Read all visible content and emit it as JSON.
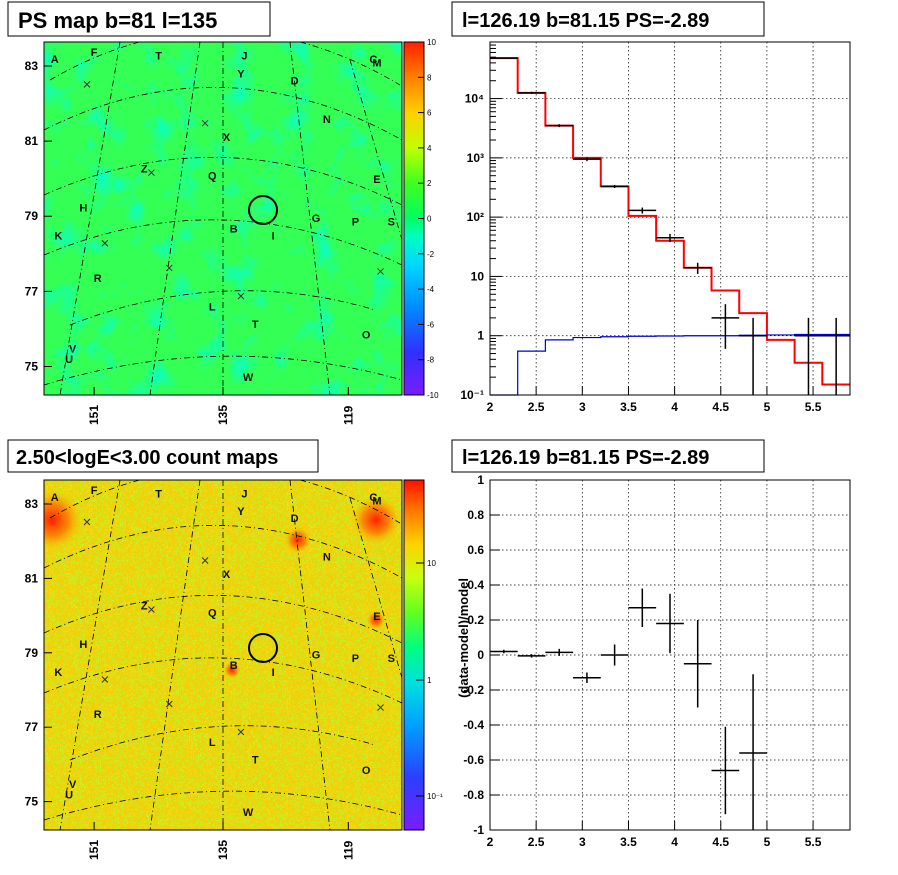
{
  "panels": {
    "ps_map": {
      "title": "PS map b=81 l=135",
      "colorbar": {
        "min": -10,
        "max": 10,
        "ticks": [
          -10,
          -8,
          -6,
          -4,
          -2,
          0,
          2,
          4,
          6,
          8,
          10
        ]
      },
      "y_ticks": [
        "83",
        "81",
        "79",
        "77",
        "75"
      ],
      "x_ticks": [
        "151",
        "135",
        "119"
      ]
    },
    "count_map": {
      "title": "2.50<logE<3.00 count maps",
      "colorbar": {
        "scale": "log",
        "ticks": [
          "10",
          "1",
          "10⁻¹"
        ]
      },
      "y_ticks": [
        "83",
        "81",
        "79",
        "77",
        "75"
      ],
      "x_ticks": [
        "151",
        "135",
        "119"
      ]
    },
    "spectrum": {
      "title": "l=126.19 b=81.15 PS=-2.89"
    },
    "residual": {
      "title": "l=126.19 b=81.15 PS=-2.89"
    }
  },
  "sources": [
    {
      "label": "A",
      "u": 0.03,
      "v": 0.06
    },
    {
      "label": "F",
      "u": 0.14,
      "v": 0.04
    },
    {
      "label": "T",
      "u": 0.32,
      "v": 0.05
    },
    {
      "label": "J",
      "u": 0.56,
      "v": 0.05
    },
    {
      "label": "C",
      "u": 0.92,
      "v": 0.06
    },
    {
      "label": "M",
      "u": 0.93,
      "v": 0.07
    },
    {
      "label": "Y",
      "u": 0.55,
      "v": 0.1
    },
    {
      "label": "D",
      "u": 0.7,
      "v": 0.12
    },
    {
      "label": "N",
      "u": 0.79,
      "v": 0.23
    },
    {
      "label": "X",
      "u": 0.51,
      "v": 0.28
    },
    {
      "label": "Z",
      "u": 0.28,
      "v": 0.37
    },
    {
      "label": "Q",
      "u": 0.47,
      "v": 0.39
    },
    {
      "label": "E",
      "u": 0.93,
      "v": 0.4
    },
    {
      "label": "H",
      "u": 0.11,
      "v": 0.48
    },
    {
      "label": "G",
      "u": 0.76,
      "v": 0.51
    },
    {
      "label": "P",
      "u": 0.87,
      "v": 0.52
    },
    {
      "label": "S",
      "u": 0.97,
      "v": 0.52
    },
    {
      "label": "B",
      "u": 0.53,
      "v": 0.54
    },
    {
      "label": "I",
      "u": 0.64,
      "v": 0.56
    },
    {
      "label": "K",
      "u": 0.04,
      "v": 0.56
    },
    {
      "label": "R",
      "u": 0.15,
      "v": 0.68
    },
    {
      "label": "L",
      "u": 0.47,
      "v": 0.76
    },
    {
      "label": "T",
      "u": 0.59,
      "v": 0.81
    },
    {
      "label": "O",
      "u": 0.9,
      "v": 0.84
    },
    {
      "label": "V",
      "u": 0.08,
      "v": 0.88
    },
    {
      "label": "U",
      "u": 0.07,
      "v": 0.91
    },
    {
      "label": "W",
      "u": 0.57,
      "v": 0.96
    }
  ],
  "chart_data": [
    {
      "type": "line",
      "name": "spectrum",
      "title": "l=126.19 b=81.15 PS=-2.89",
      "xlim": [
        2,
        5.9
      ],
      "ylim": [
        0.1,
        90000
      ],
      "yscale": "log",
      "x_ticks": [
        2,
        2.5,
        3,
        3.5,
        4,
        4.5,
        5,
        5.5
      ],
      "y_ticks": [
        {
          "value": 0.1,
          "label": "10⁻¹"
        },
        {
          "value": 1,
          "label": "1"
        },
        {
          "value": 10,
          "label": "10"
        },
        {
          "value": 100,
          "label": "10²"
        },
        {
          "value": 1000,
          "label": "10³"
        },
        {
          "value": 10000,
          "label": "10⁴"
        }
      ],
      "grid": true,
      "bin_edges": [
        2.0,
        2.3,
        2.6,
        2.9,
        3.2,
        3.5,
        3.8,
        4.1,
        4.4,
        4.7,
        5.0,
        5.3,
        5.6,
        5.9
      ],
      "series": [
        {
          "kind": "step",
          "color": "#ff0000",
          "values": [
            48000,
            12500,
            3500,
            1000,
            330,
            105,
            40,
            14,
            5.8,
            2.4,
            0.85,
            0.35,
            0.15
          ]
        },
        {
          "kind": "step",
          "color": "#0000cc",
          "values": [
            0.1,
            0.55,
            0.85,
            0.93,
            0.96,
            0.98,
            0.99,
            1.0,
            1.0,
            1.02,
            1.03,
            1.05,
            1.05
          ]
        },
        {
          "kind": "errorbar",
          "color": "#000000",
          "x": [
            2.15,
            2.45,
            2.75,
            3.05,
            3.35,
            3.65,
            3.95,
            4.25,
            4.55,
            4.85,
            5.15,
            5.45,
            5.75
          ],
          "values": [
            48000,
            12500,
            3500,
            950,
            330,
            130,
            45,
            14,
            2.0,
            1.0,
            null,
            1.0,
            1.0
          ],
          "err_lo": [
            1000,
            500,
            200,
            70,
            20,
            15,
            7,
            3,
            1.4,
            0.9,
            null,
            0.9,
            0.9
          ],
          "err_hi": [
            1000,
            500,
            200,
            70,
            20,
            15,
            7,
            3,
            1.4,
            1.0,
            null,
            1.0,
            1.0
          ]
        }
      ]
    },
    {
      "type": "scatter",
      "name": "residual",
      "title": "l=126.19 b=81.15 PS=-2.89",
      "ylabel": "(data-model)/model",
      "xlim": [
        2,
        5.9
      ],
      "ylim": [
        -1,
        1
      ],
      "x_ticks": [
        2,
        2.5,
        3,
        3.5,
        4,
        4.5,
        5,
        5.5
      ],
      "y_ticks": [
        -1,
        -0.8,
        -0.6,
        -0.4,
        -0.2,
        0,
        0.2,
        0.4,
        0.6,
        0.8,
        1
      ],
      "grid": true,
      "x": [
        2.15,
        2.45,
        2.75,
        3.05,
        3.35,
        3.65,
        3.95,
        4.25,
        4.55,
        4.85
      ],
      "x_half_width": 0.15,
      "values": [
        0.02,
        -0.005,
        0.015,
        -0.13,
        0.0,
        0.27,
        0.18,
        -0.05,
        -0.66,
        -0.56
      ],
      "errors": [
        0.01,
        0.01,
        0.02,
        0.03,
        0.06,
        0.11,
        0.17,
        0.25,
        0.25,
        0.45
      ]
    }
  ]
}
